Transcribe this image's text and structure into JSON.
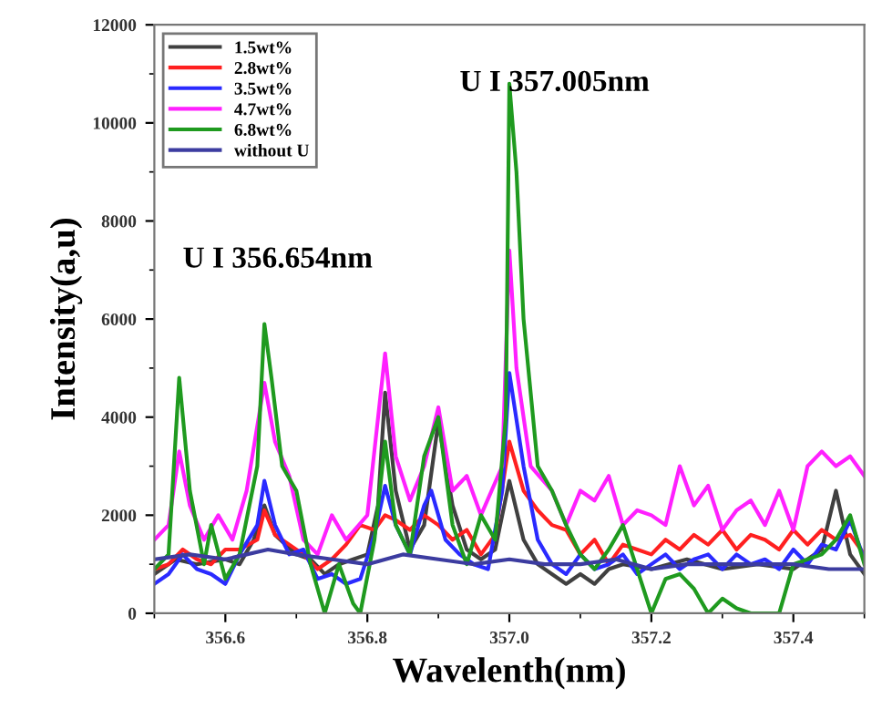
{
  "chart_data": {
    "type": "line",
    "xlabel": "Wavelenth(nm)",
    "ylabel": "Intensity(a,u)",
    "xlim": [
      356.5,
      357.5
    ],
    "xticks": [
      356.6,
      356.8,
      {
        "value": 357.0,
        "label": "357.0"
      },
      357.2,
      357.4
    ],
    "ylim": [
      0,
      12000
    ],
    "yticks": [
      0,
      2000,
      4000,
      6000,
      8000,
      10000,
      12000
    ],
    "grid": false,
    "legend": "top left",
    "marker": "none",
    "line_style": "solid",
    "annotations": [
      "U I 357.005nm",
      "U I 356.654nm"
    ],
    "series": [
      {
        "name": "1.5wt%",
        "color": "#404040",
        "x": [
          356.5,
          356.53,
          356.56,
          356.6,
          356.62,
          356.64,
          356.655,
          356.67,
          356.7,
          356.72,
          356.74,
          356.76,
          356.78,
          356.8,
          356.815,
          356.825,
          356.84,
          356.86,
          356.88,
          356.9,
          356.92,
          356.94,
          356.96,
          356.98,
          357.0,
          357.02,
          357.04,
          357.06,
          357.08,
          357.1,
          357.12,
          357.14,
          357.16,
          357.2,
          357.25,
          357.3,
          357.35,
          357.4,
          357.44,
          357.46,
          357.48,
          357.5
        ],
        "values": [
          800,
          1100,
          1000,
          1100,
          1000,
          1500,
          2200,
          1600,
          1200,
          1100,
          800,
          1000,
          1100,
          1200,
          2200,
          4500,
          2500,
          1300,
          1800,
          3900,
          2200,
          1300,
          1100,
          1300,
          2700,
          1500,
          1000,
          800,
          600,
          800,
          600,
          900,
          1000,
          900,
          1100,
          900,
          1000,
          900,
          1300,
          2500,
          1200,
          800
        ]
      },
      {
        "name": "2.8wt%",
        "color": "#ff2020",
        "x": [
          356.5,
          356.52,
          356.54,
          356.56,
          356.58,
          356.6,
          356.62,
          356.645,
          356.655,
          356.67,
          356.69,
          356.71,
          356.73,
          356.75,
          356.77,
          356.79,
          356.81,
          356.825,
          356.84,
          356.86,
          356.88,
          356.9,
          356.92,
          356.94,
          356.96,
          356.98,
          357.0,
          357.02,
          357.04,
          357.06,
          357.08,
          357.1,
          357.12,
          357.14,
          357.16,
          357.18,
          357.2,
          357.22,
          357.24,
          357.26,
          357.28,
          357.3,
          357.32,
          357.34,
          357.36,
          357.38,
          357.4,
          357.42,
          357.44,
          357.46,
          357.48,
          357.5
        ],
        "values": [
          900,
          1000,
          1300,
          1100,
          1000,
          1300,
          1300,
          1500,
          2100,
          1600,
          1400,
          1200,
          900,
          1100,
          1400,
          1800,
          1700,
          2000,
          1900,
          1700,
          2000,
          1800,
          1500,
          1700,
          1200,
          1600,
          3500,
          2500,
          2100,
          1800,
          1700,
          1200,
          1500,
          1000,
          1400,
          1300,
          1200,
          1500,
          1300,
          1600,
          1400,
          1700,
          1300,
          1600,
          1500,
          1300,
          1700,
          1400,
          1700,
          1500,
          1600,
          1200
        ]
      },
      {
        "name": "3.5wt%",
        "color": "#2a2aff",
        "x": [
          356.5,
          356.52,
          356.54,
          356.56,
          356.58,
          356.6,
          356.62,
          356.645,
          356.655,
          356.67,
          356.69,
          356.71,
          356.73,
          356.75,
          356.77,
          356.79,
          356.81,
          356.825,
          356.84,
          356.86,
          356.88,
          356.89,
          356.91,
          356.93,
          356.95,
          356.97,
          356.99,
          357.0,
          357.02,
          357.04,
          357.06,
          357.08,
          357.1,
          357.12,
          357.14,
          357.16,
          357.18,
          357.2,
          357.22,
          357.24,
          357.26,
          357.28,
          357.3,
          357.32,
          357.34,
          357.36,
          357.38,
          357.4,
          357.42,
          357.44,
          357.46,
          357.48,
          357.5
        ],
        "values": [
          600,
          800,
          1200,
          900,
          800,
          600,
          1200,
          1800,
          2700,
          1800,
          1200,
          1300,
          700,
          800,
          600,
          700,
          1600,
          2600,
          1800,
          1200,
          2200,
          2500,
          1500,
          1200,
          1000,
          900,
          2500,
          4900,
          3000,
          1500,
          1000,
          800,
          1200,
          900,
          1000,
          1200,
          800,
          1000,
          1200,
          900,
          1100,
          1200,
          900,
          1200,
          1000,
          1100,
          900,
          1300,
          1000,
          1400,
          1300,
          1900,
          1100
        ]
      },
      {
        "name": "4.7wt%",
        "color": "#ff20ff",
        "x": [
          356.5,
          356.52,
          356.535,
          356.55,
          356.57,
          356.59,
          356.61,
          356.63,
          356.655,
          356.67,
          356.69,
          356.71,
          356.73,
          356.75,
          356.77,
          356.8,
          356.825,
          356.84,
          356.86,
          356.88,
          356.9,
          356.92,
          356.94,
          356.96,
          356.99,
          357.0,
          357.01,
          357.03,
          357.06,
          357.08,
          357.1,
          357.12,
          357.14,
          357.16,
          357.18,
          357.2,
          357.22,
          357.24,
          357.26,
          357.28,
          357.3,
          357.32,
          357.34,
          357.36,
          357.38,
          357.4,
          357.42,
          357.44,
          357.46,
          357.48,
          357.5
        ],
        "values": [
          1500,
          1800,
          3300,
          2200,
          1500,
          2000,
          1500,
          2500,
          4700,
          3500,
          2800,
          1500,
          1200,
          2000,
          1500,
          2000,
          5300,
          3200,
          2300,
          3000,
          4200,
          2500,
          2800,
          2000,
          3000,
          7400,
          5000,
          3000,
          2500,
          1800,
          2500,
          2300,
          2800,
          1800,
          2100,
          2000,
          1800,
          3000,
          2200,
          2600,
          1700,
          2100,
          2300,
          1800,
          2500,
          1700,
          3000,
          3300,
          3000,
          3200,
          2800
        ]
      },
      {
        "name": "6.8wt%",
        "color": "#1f9a1f",
        "x": [
          356.5,
          356.52,
          356.535,
          356.55,
          356.57,
          356.58,
          356.6,
          356.62,
          356.645,
          356.655,
          356.665,
          356.68,
          356.7,
          356.72,
          356.74,
          356.76,
          356.78,
          356.79,
          356.81,
          356.825,
          356.84,
          356.86,
          356.88,
          356.9,
          356.92,
          356.94,
          356.96,
          356.98,
          356.995,
          357.0,
          357.01,
          357.02,
          357.04,
          357.06,
          357.08,
          357.1,
          357.12,
          357.14,
          357.16,
          357.18,
          357.2,
          357.22,
          357.24,
          357.26,
          357.28,
          357.3,
          357.32,
          357.34,
          357.38,
          357.4,
          357.44,
          357.46,
          357.48,
          357.5
        ],
        "values": [
          900,
          1200,
          4800,
          2500,
          1000,
          1800,
          700,
          1200,
          3000,
          5900,
          4800,
          3000,
          2500,
          1000,
          0,
          1000,
          200,
          0,
          1500,
          3500,
          1800,
          1200,
          3200,
          4000,
          1800,
          1000,
          2000,
          1500,
          4000,
          10800,
          9000,
          6000,
          3000,
          2500,
          1800,
          1200,
          900,
          1300,
          1800,
          900,
          0,
          700,
          800,
          500,
          0,
          300,
          100,
          0,
          0,
          1000,
          1200,
          1500,
          2000,
          1000
        ]
      },
      {
        "name": "without U",
        "color": "#3c3ca0",
        "x": [
          356.5,
          356.55,
          356.6,
          356.66,
          356.7,
          356.75,
          356.8,
          356.85,
          356.9,
          356.95,
          357.0,
          357.05,
          357.1,
          357.15,
          357.2,
          357.25,
          357.3,
          357.35,
          357.4,
          357.45,
          357.5
        ],
        "values": [
          1100,
          1200,
          1100,
          1300,
          1200,
          1100,
          1000,
          1200,
          1100,
          1000,
          1100,
          1000,
          1000,
          1100,
          900,
          1000,
          1000,
          1000,
          1000,
          900,
          900
        ]
      }
    ]
  }
}
